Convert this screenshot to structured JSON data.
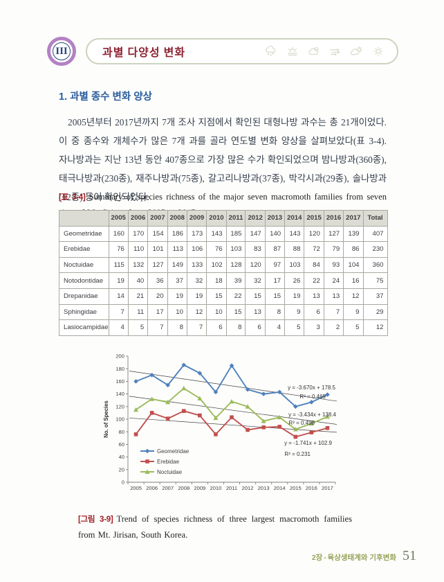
{
  "header": {
    "chapter_numeral": "III",
    "chapter_title": "과별 다양성 변화",
    "icons": [
      "snow-cloud-icon",
      "sunrise-fog-icon",
      "clouds-icon",
      "wind-icon",
      "sun-cloud-icon",
      "sun-icon"
    ]
  },
  "section": {
    "heading": "1. 과별 종수 변화 양상",
    "paragraph": "2005년부터 2017년까지 7개 조사 지점에서 확인된 대형나방 과수는 총 21개이었다. 이 중 종수와 개체수가 많은 7개 과를 골라 연도별 변화 양상을 살펴보았다(표 3-4). 자나방과는 지난 13년 동안 407종으로 가장 많은 수가 확인되었으며 밤나방과(360종), 태극나방과(230종), 재주나방과(75종), 갈고리나방과(37종), 박각시과(29종), 솔나방과(12종) 등이 확인되었다."
  },
  "table": {
    "caption_label": "[표 3-4]",
    "caption_text": "Summary of species richness of the major seven macromoth families from seven sites of Mt. Jirisan from 2005 to 2017.",
    "columns": [
      "",
      "2005",
      "2006",
      "2007",
      "2008",
      "2009",
      "2010",
      "2011",
      "2012",
      "2013",
      "2014",
      "2015",
      "2016",
      "2017",
      "Total"
    ],
    "rows": [
      {
        "family": "Geometridae",
        "values": [
          160,
          170,
          154,
          186,
          173,
          143,
          185,
          147,
          140,
          143,
          120,
          127,
          139
        ],
        "total": 407
      },
      {
        "family": "Erebidae",
        "values": [
          76,
          110,
          101,
          113,
          106,
          76,
          103,
          83,
          87,
          88,
          72,
          79,
          86
        ],
        "total": 230
      },
      {
        "family": "Noctuidae",
        "values": [
          115,
          132,
          127,
          149,
          133,
          102,
          128,
          120,
          97,
          103,
          84,
          93,
          104
        ],
        "total": 360
      },
      {
        "family": "Notodontidae",
        "values": [
          19,
          40,
          36,
          37,
          32,
          18,
          39,
          32,
          17,
          26,
          22,
          24,
          16
        ],
        "total": 75
      },
      {
        "family": "Drepanidae",
        "values": [
          14,
          21,
          20,
          19,
          19,
          15,
          22,
          15,
          15,
          19,
          13,
          13,
          12
        ],
        "total": 37
      },
      {
        "family": "Sphingidae",
        "values": [
          7,
          11,
          17,
          10,
          12,
          10,
          15,
          13,
          8,
          9,
          6,
          7,
          9
        ],
        "total": 29
      },
      {
        "family": "Lasiocampidae",
        "values": [
          4,
          5,
          7,
          8,
          7,
          6,
          8,
          6,
          4,
          5,
          3,
          2,
          5
        ],
        "total": 12
      }
    ]
  },
  "chart_data": {
    "type": "line",
    "x": [
      2005,
      2006,
      2007,
      2008,
      2009,
      2010,
      2011,
      2012,
      2013,
      2014,
      2015,
      2016,
      2017
    ],
    "series": [
      {
        "name": "Geometridae",
        "color": "#4F81BD",
        "marker": "diamond",
        "values": [
          160,
          170,
          154,
          186,
          173,
          143,
          185,
          147,
          140,
          143,
          120,
          127,
          139
        ]
      },
      {
        "name": "Erebidae",
        "color": "#C0504D",
        "marker": "square",
        "values": [
          76,
          110,
          101,
          113,
          106,
          76,
          103,
          83,
          87,
          88,
          72,
          79,
          86
        ]
      },
      {
        "name": "Noctuidae",
        "color": "#9BBB59",
        "marker": "triangle",
        "values": [
          115,
          132,
          127,
          149,
          133,
          102,
          128,
          120,
          97,
          103,
          84,
          93,
          104
        ]
      }
    ],
    "trendlines": [
      {
        "series": "Geometridae",
        "slope": -3.67,
        "intercept": 178.5,
        "equation": "y = -3.670x + 178.5",
        "r_squared": "R² = 0.469"
      },
      {
        "series": "Noctuidae",
        "slope": -3.434,
        "intercept": 138.4,
        "equation": "y = -3.434x + 138.4",
        "r_squared": "R² = 0.498"
      },
      {
        "series": "Erebidae",
        "slope": -1.741,
        "intercept": 102.9,
        "equation": "y = -1.741x + 102.9",
        "r_squared": "R² = 0.231"
      }
    ],
    "title": "",
    "xlabel": "",
    "ylabel": "No. of Species",
    "ylim": [
      0,
      200
    ],
    "ytick_step": 20,
    "grid": false,
    "legend_position": "inside-bottom-left",
    "legend": [
      "Geometridae",
      "Erebidae",
      "Noctuidae"
    ]
  },
  "figure": {
    "caption_label": "[그림 3-9]",
    "caption_text": "Trend of species richness of three largest macromoth families from Mt. Jirisan, South Korea."
  },
  "footer": {
    "chapter_label": "2장",
    "bullet": "•",
    "chapter_name": "육상생태계와 기후변화",
    "page_number": "51"
  }
}
